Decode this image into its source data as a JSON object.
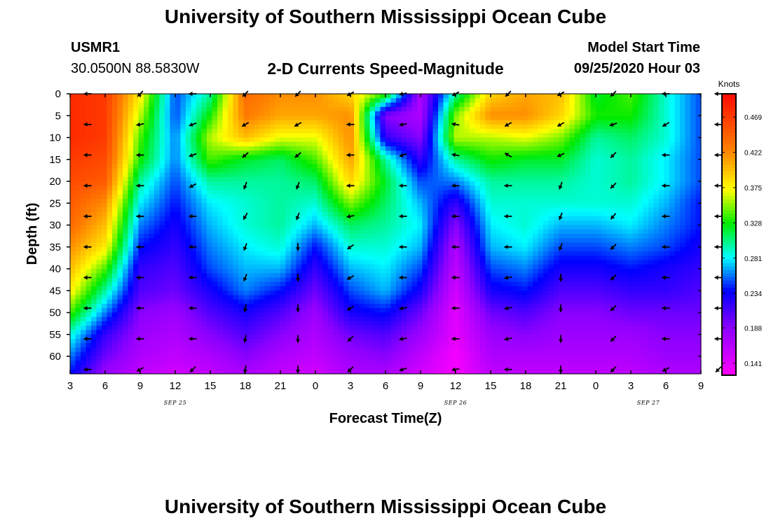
{
  "header": {
    "title": "University of Southern Mississippi Ocean Cube",
    "station_id": "USMR1",
    "coordinates": "30.0500N 88.5830W",
    "chart_title": "2-D Currents Speed-Magnitude",
    "model_start_label": "Model Start Time",
    "model_start_value": "09/25/2020 Hour 03"
  },
  "footer": {
    "title": "University of Southern Mississippi Ocean Cube"
  },
  "chart_data": {
    "type": "heatmap",
    "title": "2-D Currents Speed-Magnitude",
    "xlabel": "Forecast Time(Z)",
    "ylabel": "Depth (ft)",
    "x_tick_labels": [
      "3",
      "6",
      "9",
      "12",
      "15",
      "18",
      "21",
      "0",
      "3",
      "6",
      "9",
      "12",
      "15",
      "18",
      "21",
      "0",
      "3",
      "6",
      "9"
    ],
    "x_forecast_hours": [
      0,
      3,
      6,
      9,
      12,
      15,
      18,
      21,
      24,
      27,
      30,
      33,
      36,
      39,
      42,
      45,
      48,
      51,
      54
    ],
    "date_labels": [
      {
        "text": "SEP 25",
        "forecast_hour": 9
      },
      {
        "text": "SEP 26",
        "forecast_hour": 33
      },
      {
        "text": "SEP 27",
        "forecast_hour": 49.5
      }
    ],
    "y_ticks": [
      0,
      5,
      10,
      15,
      20,
      25,
      30,
      35,
      40,
      45,
      50,
      55,
      60
    ],
    "ylim": [
      0,
      64
    ],
    "y_inverted": true,
    "colorbar": {
      "unit": "Knots",
      "range": [
        0.125,
        0.5
      ],
      "ticks": [
        0.141,
        0.188,
        0.234,
        0.281,
        0.328,
        0.375,
        0.422,
        0.469
      ],
      "tick_labels": [
        "0.141",
        "0.188",
        "0.234",
        "0.281",
        "0.328",
        "0.375",
        "0.422",
        "0.469"
      ],
      "colormap": "rainbow (magenta-blue-cyan-green-yellow-orange-red)"
    },
    "speed_columns": [
      {
        "hour": 0,
        "depth": [
          0,
          5,
          10,
          15,
          20,
          25,
          30,
          35,
          40,
          45,
          50,
          55,
          60,
          64
        ],
        "speed": [
          0.48,
          0.48,
          0.48,
          0.47,
          0.46,
          0.45,
          0.44,
          0.42,
          0.4,
          0.38,
          0.34,
          0.29,
          0.26,
          0.24
        ]
      },
      {
        "hour": 3,
        "depth": [
          0,
          5,
          10,
          15,
          20,
          25,
          30,
          35,
          40,
          45,
          50,
          55,
          60,
          64
        ],
        "speed": [
          0.47,
          0.47,
          0.47,
          0.46,
          0.45,
          0.42,
          0.4,
          0.38,
          0.34,
          0.3,
          0.26,
          0.22,
          0.2,
          0.18
        ]
      },
      {
        "hour": 6,
        "depth": [
          0,
          5,
          10,
          15,
          20,
          25,
          30,
          35,
          40,
          45,
          50,
          55,
          60,
          64
        ],
        "speed": [
          0.38,
          0.36,
          0.34,
          0.33,
          0.3,
          0.28,
          0.26,
          0.24,
          0.22,
          0.21,
          0.19,
          0.18,
          0.17,
          0.16
        ]
      },
      {
        "hour": 9,
        "depth": [
          0,
          5,
          10,
          15,
          20,
          25,
          30,
          35,
          40,
          45,
          50,
          55,
          60,
          64
        ],
        "speed": [
          0.25,
          0.25,
          0.26,
          0.26,
          0.25,
          0.24,
          0.23,
          0.22,
          0.21,
          0.2,
          0.18,
          0.17,
          0.16,
          0.15
        ]
      },
      {
        "hour": 12,
        "depth": [
          0,
          5,
          10,
          15,
          20,
          25,
          30,
          35,
          40,
          45,
          50,
          55,
          60,
          64
        ],
        "speed": [
          0.3,
          0.33,
          0.36,
          0.34,
          0.3,
          0.28,
          0.27,
          0.26,
          0.25,
          0.23,
          0.21,
          0.19,
          0.17,
          0.16
        ]
      },
      {
        "hour": 15,
        "depth": [
          0,
          5,
          10,
          15,
          20,
          25,
          30,
          35,
          40,
          45,
          50,
          55,
          60,
          64
        ],
        "speed": [
          0.44,
          0.43,
          0.4,
          0.32,
          0.3,
          0.29,
          0.29,
          0.28,
          0.27,
          0.26,
          0.23,
          0.21,
          0.19,
          0.17
        ]
      },
      {
        "hour": 18,
        "depth": [
          0,
          5,
          10,
          15,
          20,
          25,
          30,
          35,
          40,
          45,
          50,
          55,
          60,
          64
        ],
        "speed": [
          0.42,
          0.41,
          0.37,
          0.31,
          0.3,
          0.3,
          0.3,
          0.29,
          0.27,
          0.24,
          0.21,
          0.19,
          0.17,
          0.16
        ]
      },
      {
        "hour": 21,
        "depth": [
          0,
          5,
          10,
          15,
          20,
          25,
          30,
          35,
          40,
          45,
          50,
          55,
          60,
          64
        ],
        "speed": [
          0.42,
          0.41,
          0.37,
          0.34,
          0.31,
          0.29,
          0.27,
          0.24,
          0.22,
          0.2,
          0.18,
          0.17,
          0.16,
          0.15
        ]
      },
      {
        "hour": 24,
        "depth": [
          0,
          5,
          10,
          15,
          20,
          25,
          30,
          35,
          40,
          45,
          50,
          55,
          60,
          64
        ],
        "speed": [
          0.39,
          0.42,
          0.42,
          0.41,
          0.39,
          0.35,
          0.31,
          0.29,
          0.27,
          0.25,
          0.23,
          0.2,
          0.18,
          0.17
        ]
      },
      {
        "hour": 27,
        "depth": [
          0,
          5,
          10,
          15,
          20,
          25,
          30,
          35,
          40,
          45,
          50,
          55,
          60,
          64
        ],
        "speed": [
          0.34,
          0.19,
          0.22,
          0.3,
          0.32,
          0.31,
          0.3,
          0.29,
          0.28,
          0.27,
          0.24,
          0.21,
          0.19,
          0.17
        ]
      },
      {
        "hour": 30,
        "depth": [
          0,
          5,
          10,
          15,
          20,
          25,
          30,
          35,
          40,
          45,
          50,
          55,
          60,
          64
        ],
        "speed": [
          0.17,
          0.17,
          0.19,
          0.22,
          0.25,
          0.27,
          0.28,
          0.27,
          0.25,
          0.23,
          0.2,
          0.18,
          0.16,
          0.15
        ]
      },
      {
        "hour": 33,
        "depth": [
          0,
          5,
          10,
          15,
          20,
          25,
          30,
          35,
          40,
          45,
          50,
          55,
          60,
          64
        ],
        "speed": [
          0.3,
          0.35,
          0.36,
          0.3,
          0.26,
          0.22,
          0.19,
          0.17,
          0.16,
          0.15,
          0.14,
          0.14,
          0.13,
          0.13
        ]
      },
      {
        "hour": 36,
        "depth": [
          0,
          5,
          10,
          15,
          20,
          25,
          30,
          35,
          40,
          45,
          50,
          55,
          60,
          64
        ],
        "speed": [
          0.39,
          0.42,
          0.36,
          0.33,
          0.3,
          0.29,
          0.28,
          0.27,
          0.25,
          0.23,
          0.2,
          0.18,
          0.17,
          0.16
        ]
      },
      {
        "hour": 39,
        "depth": [
          0,
          5,
          10,
          15,
          20,
          25,
          30,
          35,
          40,
          45,
          50,
          55,
          60,
          64
        ],
        "speed": [
          0.41,
          0.42,
          0.37,
          0.32,
          0.3,
          0.29,
          0.29,
          0.28,
          0.26,
          0.24,
          0.21,
          0.19,
          0.17,
          0.16
        ]
      },
      {
        "hour": 42,
        "depth": [
          0,
          5,
          10,
          15,
          20,
          25,
          30,
          35,
          40,
          45,
          50,
          55,
          60,
          64
        ],
        "speed": [
          0.4,
          0.39,
          0.35,
          0.32,
          0.3,
          0.29,
          0.27,
          0.25,
          0.23,
          0.21,
          0.19,
          0.18,
          0.17,
          0.16
        ]
      },
      {
        "hour": 45,
        "depth": [
          0,
          5,
          10,
          15,
          20,
          25,
          30,
          35,
          40,
          45,
          50,
          55,
          60,
          64
        ],
        "speed": [
          0.32,
          0.33,
          0.3,
          0.29,
          0.29,
          0.29,
          0.27,
          0.25,
          0.23,
          0.21,
          0.19,
          0.18,
          0.17,
          0.16
        ]
      },
      {
        "hour": 48,
        "depth": [
          0,
          5,
          10,
          15,
          20,
          25,
          30,
          35,
          40,
          45,
          50,
          55,
          60,
          64
        ],
        "speed": [
          0.34,
          0.33,
          0.31,
          0.3,
          0.3,
          0.29,
          0.28,
          0.26,
          0.24,
          0.22,
          0.2,
          0.18,
          0.17,
          0.16
        ]
      },
      {
        "hour": 51,
        "depth": [
          0,
          5,
          10,
          15,
          20,
          25,
          30,
          35,
          40,
          45,
          50,
          55,
          60,
          64
        ],
        "speed": [
          0.29,
          0.29,
          0.29,
          0.28,
          0.28,
          0.27,
          0.26,
          0.25,
          0.23,
          0.22,
          0.2,
          0.19,
          0.18,
          0.17
        ]
      },
      {
        "hour": 54,
        "depth": [
          0,
          5,
          10,
          15,
          20,
          25,
          30,
          35,
          40,
          45,
          50,
          55,
          60,
          64
        ],
        "speed": [
          0.25,
          0.25,
          0.25,
          0.25,
          0.25,
          0.24,
          0.24,
          0.23,
          0.22,
          0.21,
          0.2,
          0.19,
          0.18,
          0.17
        ]
      }
    ],
    "vectors": {
      "hours": [
        1.5,
        6,
        10.5,
        15,
        19.5,
        24,
        28.5,
        33,
        37.5,
        42,
        46.5,
        51,
        55.5
      ],
      "depths": [
        0,
        7,
        14,
        21,
        28,
        35,
        42,
        49,
        56,
        63
      ],
      "note": "direction in compass degrees (0=N, 90=E, 180=S, 270=W)",
      "direction_deg": [
        [
          270,
          225,
          270,
          225,
          225,
          240,
          260,
          240,
          225,
          240,
          225,
          270,
          270
        ],
        [
          270,
          260,
          250,
          240,
          240,
          270,
          260,
          280,
          240,
          240,
          250,
          240,
          270
        ],
        [
          270,
          270,
          250,
          230,
          230,
          270,
          250,
          280,
          300,
          245,
          225,
          270,
          270
        ],
        [
          270,
          270,
          240,
          200,
          200,
          270,
          270,
          270,
          270,
          200,
          225,
          270,
          270
        ],
        [
          270,
          270,
          270,
          210,
          200,
          260,
          270,
          270,
          270,
          200,
          220,
          270,
          270
        ],
        [
          270,
          270,
          270,
          200,
          180,
          235,
          270,
          270,
          270,
          200,
          225,
          270,
          270
        ],
        [
          270,
          270,
          270,
          200,
          180,
          240,
          270,
          270,
          260,
          180,
          225,
          270,
          270
        ],
        [
          270,
          270,
          270,
          190,
          180,
          240,
          260,
          270,
          260,
          180,
          225,
          270,
          270
        ],
        [
          270,
          270,
          270,
          190,
          180,
          225,
          260,
          270,
          260,
          180,
          225,
          270,
          270
        ],
        [
          270,
          240,
          225,
          190,
          180,
          225,
          250,
          260,
          270,
          180,
          225,
          240,
          225
        ]
      ]
    }
  }
}
